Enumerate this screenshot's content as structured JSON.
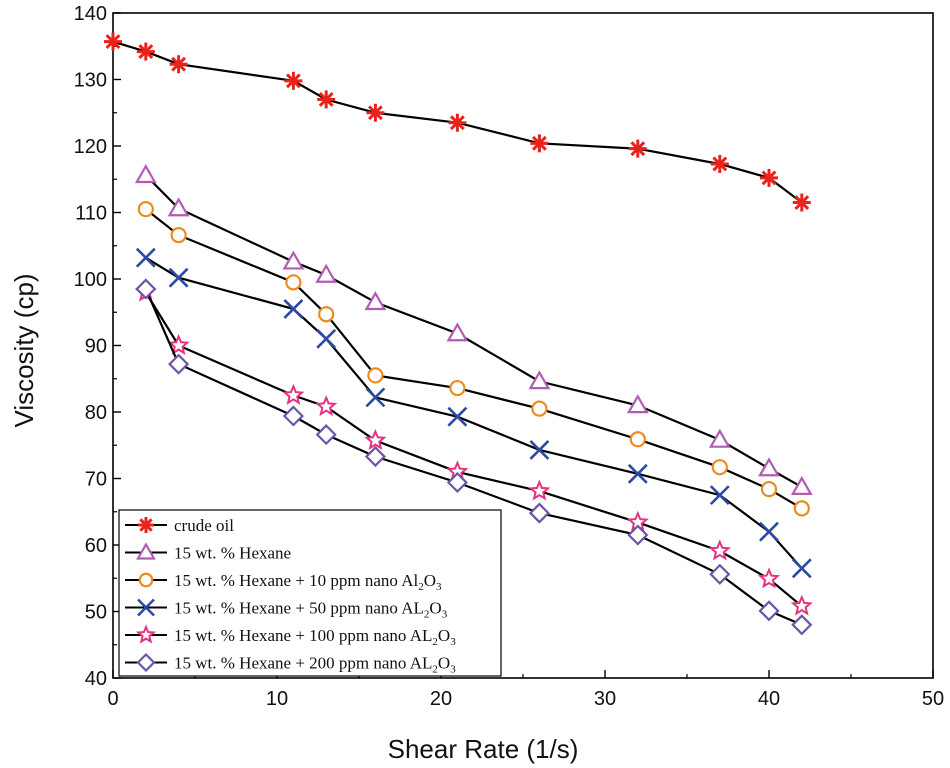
{
  "chart_data": {
    "type": "line",
    "title": "",
    "xlabel": "Shear Rate (1/s)",
    "ylabel": "Viscosity (cp)",
    "xlim": [
      0,
      50
    ],
    "ylim": [
      40,
      140
    ],
    "xticks": [
      "0",
      "10",
      "20",
      "30",
      "40",
      "50"
    ],
    "yticks": [
      "40",
      "50",
      "60",
      "70",
      "80",
      "90",
      "100",
      "110",
      "120",
      "130",
      "140"
    ],
    "grid": false,
    "legend_position": "bottom-left",
    "series": [
      {
        "name": "crude oil",
        "legend_parts": [
          "crude oil"
        ],
        "marker": "asterisk",
        "color": "#e8231c",
        "x": [
          0,
          2,
          4,
          11,
          13,
          16,
          21,
          26,
          32,
          37,
          40,
          42
        ],
        "y": [
          135.7,
          134.2,
          132.3,
          129.8,
          127.0,
          125.0,
          123.5,
          120.4,
          119.6,
          117.3,
          115.2,
          111.5
        ]
      },
      {
        "name": "15 wt. % Hexane",
        "legend_parts": [
          "15 wt. % Hexane"
        ],
        "marker": "triangle",
        "color": "#b25bb5",
        "x": [
          2,
          4,
          11,
          13,
          16,
          21,
          26,
          32,
          37,
          40,
          42
        ],
        "y": [
          115.6,
          110.6,
          102.6,
          100.6,
          96.5,
          91.8,
          84.6,
          81.0,
          75.8,
          71.5,
          68.7
        ]
      },
      {
        "name": "15 wt. % Hexane + 10 ppm nano Al2O3",
        "legend_parts": [
          "15 wt. % Hexane + 10 ppm nano Al",
          "2",
          "O",
          "3"
        ],
        "marker": "circle",
        "color": "#ee8a22",
        "x": [
          2,
          4,
          11,
          13,
          16,
          21,
          26,
          32,
          37,
          40,
          42
        ],
        "y": [
          110.5,
          106.6,
          99.5,
          94.7,
          85.5,
          83.6,
          80.5,
          75.9,
          71.7,
          68.4,
          65.5
        ]
      },
      {
        "name": "15 wt. % Hexane + 50 ppm nano AL2O3",
        "legend_parts": [
          "15 wt. % Hexane + 50 ppm nano AL",
          "2",
          "O",
          "3"
        ],
        "marker": "cross",
        "color": "#2b4aa3",
        "x": [
          2,
          4,
          11,
          13,
          16,
          21,
          26,
          32,
          37,
          40,
          42
        ],
        "y": [
          103.2,
          100.2,
          95.5,
          91.0,
          82.2,
          79.3,
          74.3,
          70.7,
          67.5,
          62.0,
          56.5
        ]
      },
      {
        "name": "15 wt. % Hexane + 100 ppm nano AL2O3",
        "legend_parts": [
          "15 wt. % Hexane + 100 ppm nano AL",
          "2",
          "O",
          "3"
        ],
        "marker": "star",
        "color": "#e8317f",
        "x": [
          2,
          4,
          11,
          13,
          16,
          21,
          26,
          32,
          37,
          40,
          42
        ],
        "y": [
          98.0,
          90.0,
          82.5,
          80.8,
          75.7,
          71.0,
          68.1,
          63.4,
          59.1,
          54.9,
          50.8
        ]
      },
      {
        "name": "15 wt. % Hexane + 200 ppm nano AL2O3",
        "legend_parts": [
          "15 wt. % Hexane + 200 ppm nano AL",
          "2",
          "O",
          "3"
        ],
        "marker": "diamond",
        "color": "#6a55a8",
        "x": [
          2,
          4,
          11,
          13,
          16,
          21,
          26,
          32,
          37,
          40,
          42
        ],
        "y": [
          98.5,
          87.2,
          79.4,
          76.6,
          73.3,
          69.4,
          64.8,
          61.5,
          55.6,
          50.1,
          48.0
        ]
      }
    ]
  }
}
